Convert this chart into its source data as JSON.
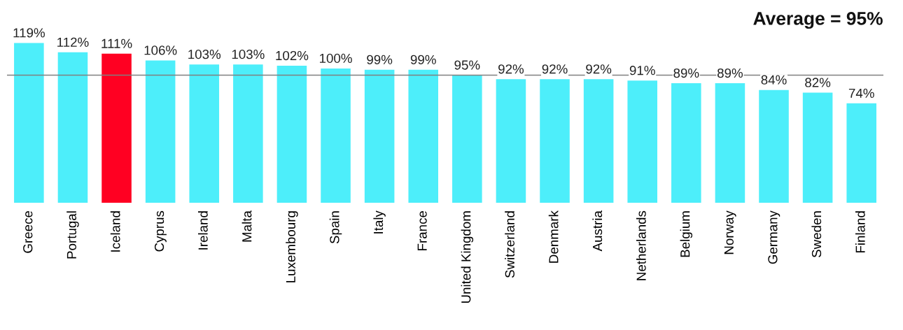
{
  "chart_data": {
    "type": "bar",
    "categories": [
      "Greece",
      "Portugal",
      "Iceland",
      "Cyprus",
      "Ireland",
      "Malta",
      "Luxembourg",
      "Spain",
      "Italy",
      "France",
      "United Kingdom",
      "Switzerland",
      "Denmark",
      "Austria",
      "Netherlands",
      "Belgium",
      "Norway",
      "Germany",
      "Sweden",
      "Finland"
    ],
    "values": [
      119,
      112,
      111,
      106,
      103,
      103,
      102,
      100,
      99,
      99,
      95,
      92,
      92,
      92,
      91,
      89,
      89,
      84,
      82,
      74
    ],
    "colors": [
      "#4deefa",
      "#4deefa",
      "#ff0022",
      "#4deefa",
      "#4deefa",
      "#4deefa",
      "#4deefa",
      "#4deefa",
      "#4deefa",
      "#4deefa",
      "#4deefa",
      "#4deefa",
      "#4deefa",
      "#4deefa",
      "#4deefa",
      "#4deefa",
      "#4deefa",
      "#4deefa",
      "#4deefa",
      "#4deefa"
    ],
    "value_labels": [
      "119%",
      "112%",
      "111%",
      "106%",
      "103%",
      "103%",
      "102%",
      "100%",
      "99%",
      "99%",
      "95%",
      "92%",
      "92%",
      "92%",
      "91%",
      "89%",
      "89%",
      "84%",
      "82%",
      "74%"
    ],
    "tick_labels": "x",
    "legend": false,
    "ref_lines": [
      {
        "axis": "y",
        "value": 95,
        "label": "Average = 95%",
        "color": "#808080"
      }
    ]
  }
}
